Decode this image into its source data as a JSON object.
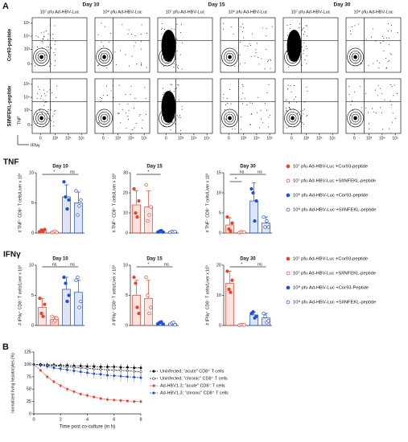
{
  "chart_data": [
    {
      "type": "flow",
      "panel": "A",
      "days": [
        "Day 10",
        "Day 15",
        "Day 30"
      ],
      "columns": [
        "10⁷ pfu Ad-HBV-Luc",
        "10⁸ pfu Ad-HBV-Luc",
        "10⁷ pfu Ad-HBV-Luc",
        "10⁸ pfu Ad-HBV-Luc",
        "10⁷ pfu Ad-HBV-Luc",
        "10⁸ pfu Ad-HBV-Luc"
      ],
      "rows": [
        "Cor93-peptide",
        "SIINFEKL-peptide"
      ],
      "ylabel": "TNF",
      "xlabel": "IFNγ",
      "xlim": [
        -300,
        262144
      ],
      "ylim": [
        -300,
        262144
      ],
      "xticks": [
        0,
        {
          "value": 1000,
          "label": "10³"
        },
        {
          "value": 10000,
          "label": "10⁴"
        },
        {
          "value": 100000,
          "label": "10⁵"
        }
      ],
      "yticks": [
        0,
        {
          "value": 1000,
          "label": "10³"
        },
        {
          "value": 10000,
          "label": "10⁴"
        },
        {
          "value": 100000,
          "label": "10⁵"
        }
      ]
    },
    {
      "type": "bar",
      "label": "TNF",
      "title": "Day 10",
      "ylabel": "# TNF⁺ CD8⁺ T cells/Liver x 10³",
      "ylim": [
        0,
        10
      ],
      "yticks": [
        0,
        5,
        10
      ],
      "annotations": [
        "*",
        "ns"
      ],
      "series": [
        {
          "name": "10⁷ pfu Ad-HBV-Luc +Cor93-peptide",
          "color": "#e8412c",
          "marker": "filled",
          "values": [
            0.4
          ],
          "errors": [
            0.2
          ],
          "points": [
            0.2,
            0.5,
            0.3,
            0.6
          ]
        },
        {
          "name": "10⁷ pfu Ad-HBV-Luc +SIINFEKL-peptide",
          "color": "#e8412c",
          "marker": "open",
          "values": [
            0.2
          ],
          "errors": [
            0.1
          ],
          "points": [
            0.1,
            0.2,
            0.3,
            0.1
          ]
        },
        {
          "name": "10⁸ pfu Ad-HBV-Luc +Cor93-peptide",
          "color": "#1f4fd1",
          "marker": "filled",
          "values": [
            6
          ],
          "errors": [
            2
          ],
          "points": [
            8.5,
            6,
            4,
            5.5
          ]
        },
        {
          "name": "10⁸ pfu Ad-HBV-Luc +SIINFEKL-peptide",
          "color": "#1f4fd1",
          "marker": "open",
          "values": [
            5
          ],
          "errors": [
            1.8
          ],
          "points": [
            7,
            3,
            4.5,
            5.5
          ]
        }
      ]
    },
    {
      "type": "bar",
      "title": "Day 15",
      "ylabel": "# TNF⁺ CD8⁺ T cells/Liver x 10³",
      "ylim": [
        0,
        30
      ],
      "yticks": [
        0,
        10,
        20,
        30
      ],
      "annotations": [
        "*"
      ],
      "series": [
        {
          "color": "#e8412c",
          "marker": "filled",
          "values": [
            14
          ],
          "errors": [
            7
          ],
          "points": [
            22,
            10,
            8,
            16
          ]
        },
        {
          "color": "#e8412c",
          "marker": "open",
          "values": [
            13
          ],
          "errors": [
            8
          ],
          "points": [
            24,
            6,
            9,
            13
          ]
        },
        {
          "color": "#1f4fd1",
          "marker": "filled",
          "values": [
            0.8
          ],
          "errors": [
            0.4
          ],
          "points": [
            0.5,
            1,
            1.2,
            0.5
          ]
        },
        {
          "color": "#1f4fd1",
          "marker": "open",
          "values": [
            0.6
          ],
          "errors": [
            0.3
          ],
          "points": [
            0.3,
            0.8,
            0.6,
            0.7
          ]
        }
      ]
    },
    {
      "type": "bar",
      "title": "Day 30",
      "ylabel": "# TNF⁺ CD8⁺ T cells/Liver x 10³",
      "ylim": [
        0,
        15
      ],
      "yticks": [
        0,
        5,
        10,
        15
      ],
      "annotations": [
        "ns",
        "ns",
        "*"
      ],
      "series": [
        {
          "color": "#e8412c",
          "marker": "filled",
          "values": [
            2
          ],
          "errors": [
            1.8
          ],
          "points": [
            4,
            1,
            0.5,
            2.5
          ]
        },
        {
          "color": "#e8412c",
          "marker": "open",
          "values": [
            0.2
          ],
          "errors": [
            0.1
          ],
          "points": [
            0.1,
            0.3,
            0.2,
            0.2
          ]
        },
        {
          "color": "#1f4fd1",
          "marker": "filled",
          "values": [
            8
          ],
          "errors": [
            4.5
          ],
          "points": [
            11,
            10,
            3,
            8
          ]
        },
        {
          "color": "#1f4fd1",
          "marker": "open",
          "values": [
            2.5
          ],
          "errors": [
            1.5
          ],
          "points": [
            4,
            1.5,
            3,
            1.5
          ]
        }
      ]
    },
    {
      "type": "bar",
      "label": "IFNγ",
      "title": "Day 10",
      "ylabel": "# IFNγ⁺ CD8⁺ T cells/Liver x 10³",
      "ylim": [
        0,
        10
      ],
      "yticks": [
        0,
        5,
        10
      ],
      "annotations": [
        "ns",
        "ns"
      ],
      "series": [
        {
          "name": "10⁷ pfu Ad-HBV-Luc +Cor93-peptide",
          "color": "#e8412c",
          "marker": "filled",
          "values": [
            3
          ],
          "errors": [
            1.5
          ],
          "points": [
            4.5,
            2,
            1.5,
            3.5
          ]
        },
        {
          "name": "10⁷ pfu Ad-HBV-Luc +SIINFEKL-peptide",
          "color": "#e8412c",
          "marker": "open",
          "values": [
            1
          ],
          "errors": [
            0.5
          ],
          "points": [
            1.5,
            0.5,
            0.8,
            1.2
          ]
        },
        {
          "name": "10⁸ pfu Ad-HBV-Luc +Cor93-Peptide",
          "color": "#1f4fd1",
          "marker": "filled",
          "values": [
            6
          ],
          "errors": [
            2
          ],
          "points": [
            8,
            7,
            4,
            5
          ]
        },
        {
          "name": "10⁸ pfu Ad-HBV-Luc +SIINFEKL-peptide",
          "color": "#1f4fd1",
          "marker": "open",
          "values": [
            5.5
          ],
          "errors": [
            2
          ],
          "points": [
            7.5,
            8,
            3,
            4
          ]
        }
      ]
    },
    {
      "type": "bar",
      "title": "Day 15",
      "ylabel": "# IFNγ⁺ CD8⁺ T cells/Liver x 10³",
      "ylim": [
        0,
        10
      ],
      "yticks": [
        0,
        5,
        10
      ],
      "annotations": [
        "*",
        "ns"
      ],
      "series": [
        {
          "color": "#e8412c",
          "marker": "filled",
          "values": [
            5
          ],
          "errors": [
            2.5
          ],
          "points": [
            8,
            7,
            3,
            2
          ]
        },
        {
          "color": "#e8412c",
          "marker": "open",
          "values": [
            4.5
          ],
          "errors": [
            3
          ],
          "points": [
            8,
            5,
            2,
            3
          ]
        },
        {
          "color": "#1f4fd1",
          "marker": "filled",
          "values": [
            0.4
          ],
          "errors": [
            0.2
          ],
          "points": [
            0.3,
            0.5,
            0.6,
            0.2
          ]
        },
        {
          "color": "#1f4fd1",
          "marker": "open",
          "values": [
            0.3
          ],
          "errors": [
            0.2
          ],
          "points": [
            0.2,
            0.4,
            0.5,
            0.1
          ]
        }
      ]
    },
    {
      "type": "bar",
      "title": "Day 30",
      "ylabel": "# IFNγ⁺ CD8⁺ T cells/Liver x 10³",
      "ylim": [
        0,
        20
      ],
      "yticks": [
        0,
        10,
        20
      ],
      "annotations": [
        "*",
        "ns"
      ],
      "series": [
        {
          "color": "#e8412c",
          "marker": "filled",
          "values": [
            14
          ],
          "errors": [
            4
          ],
          "points": [
            18,
            12,
            11,
            15
          ]
        },
        {
          "color": "#e8412c",
          "marker": "open",
          "values": [
            0.2
          ],
          "errors": [
            0.1
          ],
          "points": [
            0.1,
            0.3,
            0.2,
            0.2
          ]
        },
        {
          "color": "#1f4fd1",
          "marker": "filled",
          "values": [
            3.5
          ],
          "errors": [
            1
          ],
          "points": [
            4,
            4.5,
            2.5,
            3
          ]
        },
        {
          "color": "#1f4fd1",
          "marker": "open",
          "values": [
            2.5
          ],
          "errors": [
            1.5
          ],
          "points": [
            4,
            3,
            1,
            1.5
          ]
        }
      ]
    },
    {
      "type": "line",
      "panel": "B",
      "xlabel": "Time post co-culture (in h)",
      "ylabel": "normalized living hepatocytes (%)",
      "xlim": [
        0,
        8
      ],
      "xticks": [
        0,
        2,
        4,
        6,
        8
      ],
      "ylim": [
        0,
        125
      ],
      "yticks": [
        0,
        25,
        50,
        75,
        100,
        125
      ],
      "x": [
        0,
        0.5,
        1,
        1.5,
        2,
        2.5,
        3,
        3.5,
        4,
        4.5,
        5,
        5.5,
        6,
        6.5,
        7,
        7.5,
        8
      ],
      "series": [
        {
          "name": "Uninfected; \"acute\" CD8⁺ T cells",
          "color": "#111111",
          "marker": "filled",
          "values": [
            100,
            100,
            99,
            99,
            98,
            98,
            97,
            97,
            96,
            96,
            95,
            95,
            95,
            94,
            94,
            93,
            93
          ],
          "errors": [
            3,
            3,
            4,
            4,
            4,
            5,
            5,
            5,
            5,
            6,
            6,
            6,
            6,
            7,
            7,
            7,
            7
          ]
        },
        {
          "name": "Uninfected; \"chronic\" CD8⁺ T cells",
          "color": "#111111",
          "marker": "open",
          "values": [
            100,
            99,
            98,
            97,
            96,
            95,
            94,
            93,
            92,
            91,
            90,
            89,
            88,
            88,
            87,
            86,
            85
          ],
          "errors": [
            4,
            5,
            6,
            7,
            8,
            9,
            10,
            10,
            11,
            11,
            12,
            12,
            12,
            12,
            12,
            12,
            12
          ]
        },
        {
          "name": "Ad-HBV1.3; \"acute\" CD8⁺ T cells",
          "color": "#e8412c",
          "marker": "filled",
          "values": [
            100,
            88,
            75,
            65,
            57,
            50,
            45,
            40,
            37,
            34,
            31,
            29,
            28,
            27,
            26,
            25,
            25
          ],
          "errors": [
            3,
            4,
            5,
            5,
            5,
            5,
            5,
            5,
            5,
            5,
            5,
            5,
            4,
            4,
            4,
            4,
            4
          ]
        },
        {
          "name": "Ad-HBV1.3; \"chronic\" CD8⁺ T cells",
          "color": "#1f4fd1",
          "marker": "filled",
          "values": [
            100,
            98,
            96,
            93,
            91,
            89,
            87,
            85,
            83,
            81,
            80,
            78,
            77,
            76,
            75,
            74,
            73
          ],
          "errors": [
            3,
            4,
            5,
            6,
            7,
            8,
            8,
            9,
            9,
            10,
            10,
            10,
            10,
            11,
            11,
            11,
            11
          ]
        }
      ]
    }
  ]
}
